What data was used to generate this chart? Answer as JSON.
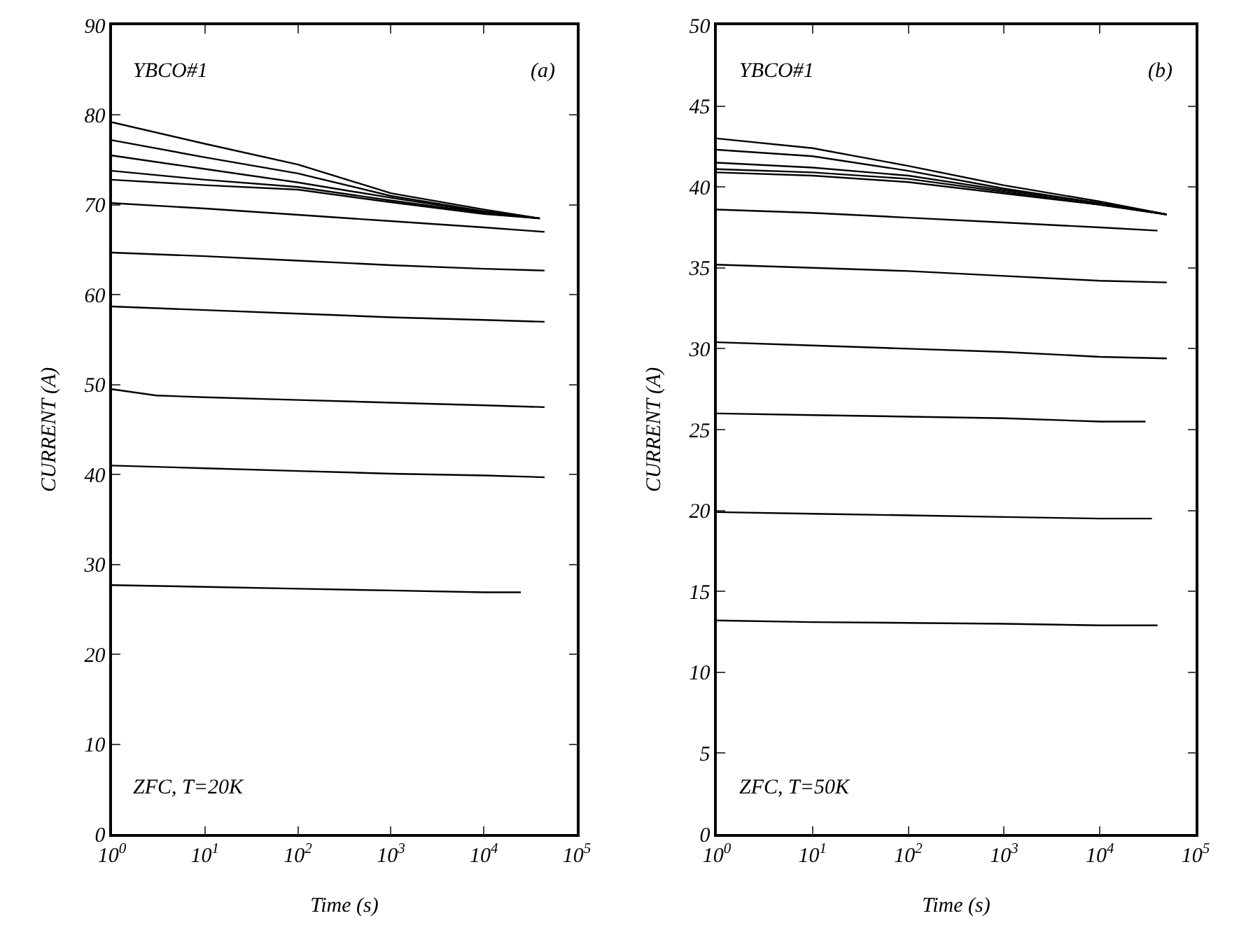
{
  "chart_data": [
    {
      "type": "line",
      "xlabel": "Time (s)",
      "ylabel": "CURRENT (A)",
      "log": "x",
      "grid": false,
      "marker": "none",
      "line_style": "solid",
      "annotations": [
        "YBCO#1",
        "(a)",
        "ZFC, T=20K"
      ],
      "xlim": [
        1,
        100000
      ],
      "xticks": [
        {
          "value": 1,
          "label": "10$^{0}$"
        },
        {
          "value": 10,
          "label": "10$^{1}$"
        },
        {
          "value": 100,
          "label": "10$^{2}$"
        },
        {
          "value": 1000,
          "label": "10$^{3}$"
        },
        {
          "value": 10000,
          "label": "10$^{4}$"
        },
        {
          "value": 100000,
          "label": "10$^{5}$"
        }
      ],
      "ylim": [
        0,
        90
      ],
      "yticks": [
        0,
        10,
        20,
        30,
        40,
        50,
        60,
        70,
        80,
        90
      ],
      "series": [
        {
          "color": "#000000",
          "x": [
            1,
            10,
            100,
            1000,
            10000,
            40000
          ],
          "values": [
            79.2,
            76.8,
            74.5,
            71.3,
            69.5,
            68.5
          ]
        },
        {
          "color": "#000000",
          "x": [
            1,
            10,
            100,
            1000,
            10000,
            40000
          ],
          "values": [
            77.2,
            75.3,
            73.5,
            71,
            69.3,
            68.5
          ]
        },
        {
          "color": "#000000",
          "x": [
            1,
            10,
            100,
            1000,
            10000,
            40000
          ],
          "values": [
            75.5,
            74,
            72.5,
            70.8,
            69.2,
            68.5
          ]
        },
        {
          "color": "#000000",
          "x": [
            1,
            10,
            100,
            1000,
            10000,
            40000
          ],
          "values": [
            73.8,
            72.8,
            72,
            70.5,
            69.1,
            68.5
          ]
        },
        {
          "color": "#000000",
          "x": [
            1,
            10,
            100,
            1000,
            10000,
            40000
          ],
          "values": [
            72.8,
            72.2,
            71.7,
            70.3,
            69,
            68.5
          ]
        },
        {
          "color": "#000000",
          "x": [
            1,
            10,
            100,
            1000,
            10000,
            45000
          ],
          "values": [
            70.2,
            69.6,
            68.9,
            68.2,
            67.5,
            67
          ]
        },
        {
          "color": "#000000",
          "x": [
            1,
            10,
            100,
            1000,
            10000,
            45000
          ],
          "values": [
            64.7,
            64.3,
            63.8,
            63.3,
            62.9,
            62.7
          ]
        },
        {
          "color": "#000000",
          "x": [
            1,
            10,
            100,
            1000,
            10000,
            45000
          ],
          "values": [
            58.7,
            58.3,
            57.9,
            57.5,
            57.2,
            57
          ]
        },
        {
          "color": "#000000",
          "x": [
            1,
            3,
            10,
            100,
            1000,
            10000,
            45000
          ],
          "values": [
            49.5,
            48.8,
            48.6,
            48.3,
            48,
            47.7,
            47.5
          ]
        },
        {
          "color": "#000000",
          "x": [
            1,
            10,
            100,
            1000,
            10000,
            45000
          ],
          "values": [
            41,
            40.7,
            40.4,
            40.1,
            39.9,
            39.7
          ]
        },
        {
          "color": "#000000",
          "x": [
            1,
            10,
            100,
            1000,
            10000,
            25000
          ],
          "values": [
            27.7,
            27.5,
            27.3,
            27.1,
            26.9,
            26.9
          ]
        }
      ]
    },
    {
      "type": "line",
      "xlabel": "Time (s)",
      "ylabel": "CURRENT (A)",
      "log": "x",
      "grid": false,
      "marker": "none",
      "line_style": "solid",
      "annotations": [
        "YBCO#1",
        "(b)",
        "ZFC, T=50K"
      ],
      "xlim": [
        1,
        100000
      ],
      "xticks": [
        {
          "value": 1,
          "label": "10$^{0}$"
        },
        {
          "value": 10,
          "label": "10$^{1}$"
        },
        {
          "value": 100,
          "label": "10$^{2}$"
        },
        {
          "value": 1000,
          "label": "10$^{3}$"
        },
        {
          "value": 10000,
          "label": "10$^{4}$"
        },
        {
          "value": 100000,
          "label": "10$^{5}$"
        }
      ],
      "ylim": [
        0,
        50
      ],
      "yticks": [
        0,
        5,
        10,
        15,
        20,
        25,
        30,
        35,
        40,
        45,
        50
      ],
      "series": [
        {
          "color": "#000000",
          "x": [
            1,
            10,
            100,
            1000,
            10000,
            50000
          ],
          "values": [
            43,
            42.4,
            41.3,
            40.1,
            39.1,
            38.3
          ]
        },
        {
          "color": "#000000",
          "x": [
            1,
            10,
            100,
            1000,
            10000,
            50000
          ],
          "values": [
            42.3,
            41.9,
            41,
            39.9,
            39,
            38.3
          ]
        },
        {
          "color": "#000000",
          "x": [
            1,
            10,
            100,
            1000,
            10000,
            50000
          ],
          "values": [
            41.5,
            41.2,
            40.7,
            39.8,
            39,
            38.3
          ]
        },
        {
          "color": "#000000",
          "x": [
            1,
            10,
            100,
            1000,
            10000,
            50000
          ],
          "values": [
            41.1,
            40.9,
            40.5,
            39.7,
            38.9,
            38.3
          ]
        },
        {
          "color": "#000000",
          "x": [
            1,
            10,
            100,
            1000,
            10000,
            50000
          ],
          "values": [
            40.9,
            40.7,
            40.3,
            39.6,
            38.9,
            38.3
          ]
        },
        {
          "color": "#000000",
          "x": [
            1,
            10,
            100,
            1000,
            10000,
            40000
          ],
          "values": [
            38.6,
            38.4,
            38.1,
            37.8,
            37.5,
            37.3
          ]
        },
        {
          "color": "#000000",
          "x": [
            1,
            10,
            100,
            1000,
            10000,
            50000
          ],
          "values": [
            35.2,
            35,
            34.8,
            34.5,
            34.2,
            34.1
          ]
        },
        {
          "color": "#000000",
          "x": [
            1,
            10,
            100,
            1000,
            10000,
            50000
          ],
          "values": [
            30.4,
            30.2,
            30,
            29.8,
            29.5,
            29.4
          ]
        },
        {
          "color": "#000000",
          "x": [
            1,
            10,
            100,
            1000,
            10000,
            30000
          ],
          "values": [
            26,
            25.9,
            25.8,
            25.7,
            25.5,
            25.5
          ]
        },
        {
          "color": "#000000",
          "x": [
            1,
            10,
            100,
            1000,
            10000,
            35000
          ],
          "values": [
            19.9,
            19.8,
            19.7,
            19.6,
            19.5,
            19.5
          ]
        },
        {
          "color": "#000000",
          "x": [
            1,
            10,
            100,
            1000,
            10000,
            40000
          ],
          "values": [
            13.2,
            13.1,
            13.05,
            13,
            12.9,
            12.9
          ]
        }
      ]
    }
  ]
}
